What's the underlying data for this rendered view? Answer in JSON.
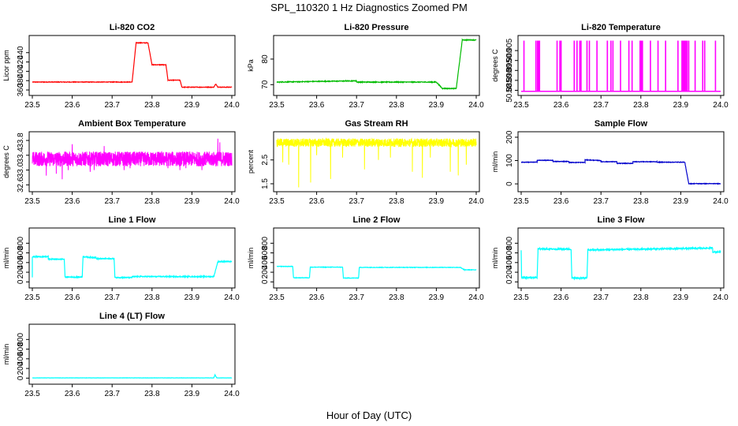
{
  "figure": {
    "title": "SPL_110320  1 Hz Diagnostics Zoomed PM",
    "xlabel": "Hour of Day (UTC)"
  },
  "chart_data": [
    {
      "type": "line",
      "title": "Li-820 CO2",
      "ylabel": "Licor ppm",
      "color": "#ff0000",
      "xlim": [
        23.5,
        24.0
      ],
      "ylim": [
        355,
        470
      ],
      "yticks": [
        360,
        380,
        400,
        420,
        440
      ],
      "ytick_labels": [
        "360",
        "380",
        "400",
        "420",
        "440"
      ],
      "xticks": [
        23.5,
        23.6,
        23.7,
        23.8,
        23.9,
        24.0
      ],
      "xtick_labels": [
        "23.5",
        "23.6",
        "23.7",
        "23.8",
        "23.9",
        "24.0"
      ],
      "noise": 0.6,
      "segments": [
        [
          23.5,
          23.75,
          377,
          377
        ],
        [
          23.75,
          23.76,
          376,
          461
        ],
        [
          23.76,
          23.79,
          461,
          461
        ],
        [
          23.79,
          23.8,
          461,
          414
        ],
        [
          23.8,
          23.835,
          414,
          414
        ],
        [
          23.835,
          23.84,
          414,
          381
        ],
        [
          23.84,
          23.87,
          381,
          381
        ],
        [
          23.87,
          23.875,
          381,
          366
        ],
        [
          23.875,
          23.955,
          366,
          366
        ],
        [
          23.955,
          23.96,
          366,
          373
        ],
        [
          23.96,
          23.965,
          373,
          366
        ],
        [
          23.965,
          24.0,
          366,
          366
        ]
      ]
    },
    {
      "type": "line",
      "title": "Li-820 Pressure",
      "ylabel": "kPa",
      "color": "#00bb00",
      "xlim": [
        23.5,
        24.0
      ],
      "ylim": [
        67,
        88
      ],
      "yticks": [
        70,
        80
      ],
      "ytick_labels": [
        "70",
        "80"
      ],
      "xticks": [
        23.5,
        23.6,
        23.7,
        23.8,
        23.9,
        24.0
      ],
      "xtick_labels": [
        "23.5",
        "23.6",
        "23.7",
        "23.8",
        "23.9",
        "24.0"
      ],
      "noise": 0.15,
      "segments": [
        [
          23.5,
          23.7,
          71.0,
          71.5
        ],
        [
          23.7,
          23.9,
          71.0,
          71.0
        ],
        [
          23.9,
          23.915,
          71.0,
          68.5
        ],
        [
          23.915,
          23.95,
          68.5,
          68.5
        ],
        [
          23.95,
          23.965,
          68.5,
          87.5
        ],
        [
          23.965,
          24.0,
          87.5,
          87.5
        ]
      ]
    },
    {
      "type": "line",
      "title": "Li-820 Temperature",
      "ylabel": "degrees C",
      "color": "#ff00ff",
      "xlim": [
        23.5,
        24.0
      ],
      "ylim": [
        50.884,
        50.911
      ],
      "yticks": [
        50.885,
        50.89,
        50.895,
        50.9,
        50.905
      ],
      "ytick_labels": [
        "50.885",
        "50.890",
        "50.895",
        "50.900",
        "50.905"
      ],
      "xticks": [
        23.5,
        23.6,
        23.7,
        23.8,
        23.9,
        24.0
      ],
      "xtick_labels": [
        "23.5",
        "23.6",
        "23.7",
        "23.8",
        "23.9",
        "24.0"
      ],
      "baseline": 50.8845,
      "spikes": [
        23.507,
        23.537,
        23.541,
        23.544,
        23.546,
        23.59,
        23.597,
        23.6,
        23.633,
        23.64,
        23.647,
        23.65,
        23.665,
        23.671,
        23.69,
        23.716,
        23.725,
        23.73,
        23.749,
        23.77,
        23.778,
        23.798,
        23.801,
        23.804,
        23.824,
        23.843,
        23.862,
        23.893,
        23.903,
        23.905,
        23.907,
        23.909,
        23.911,
        23.913,
        23.916,
        23.92,
        23.936,
        23.955,
        23.96,
        23.987
      ],
      "spike_top": 50.91
    },
    {
      "type": "line",
      "title": "Ambient Box Temperature",
      "ylabel": "degrees C",
      "color": "#ff00ff",
      "xlim": [
        23.5,
        24.0
      ],
      "ylim": [
        32.5,
        33.95
      ],
      "yticks": [
        32.6,
        33.0,
        33.4,
        33.8
      ],
      "ytick_labels": [
        "32.6",
        "33.0",
        "33.4",
        "33.8"
      ],
      "xticks": [
        23.5,
        23.6,
        23.7,
        23.8,
        23.9,
        24.0
      ],
      "xtick_labels": [
        "23.5",
        "23.6",
        "23.7",
        "23.8",
        "23.9",
        "24.0"
      ],
      "band": [
        33.1,
        33.5
      ],
      "dips": [
        [
          23.535,
          32.85
        ],
        [
          23.56,
          32.9
        ],
        [
          23.575,
          32.75
        ],
        [
          23.59,
          33.0
        ],
        [
          23.645,
          32.95
        ],
        [
          23.655,
          33.0
        ],
        [
          23.73,
          33.0
        ],
        [
          23.745,
          33.05
        ],
        [
          23.84,
          33.05
        ],
        [
          23.87,
          33.0
        ],
        [
          23.885,
          33.05
        ],
        [
          23.925,
          33.0
        ],
        [
          23.96,
          33.1
        ]
      ],
      "peaks": [
        [
          23.965,
          33.85
        ],
        [
          23.97,
          33.75
        ],
        [
          23.6,
          33.7
        ],
        [
          23.68,
          33.65
        ]
      ]
    },
    {
      "type": "line",
      "title": "Gas Stream RH",
      "ylabel": "percent",
      "color": "#ffff00",
      "xlim": [
        23.5,
        24.0
      ],
      "ylim": [
        1.3,
        3.55
      ],
      "yticks": [
        1.5,
        2.5
      ],
      "ytick_labels": [
        "1.5",
        "2.5"
      ],
      "xticks": [
        23.5,
        23.6,
        23.7,
        23.8,
        23.9,
        24.0
      ],
      "xtick_labels": [
        "23.5",
        "23.6",
        "23.7",
        "23.8",
        "23.9",
        "24.0"
      ],
      "band": [
        3.05,
        3.4
      ],
      "dips": [
        [
          23.515,
          2.4
        ],
        [
          23.53,
          2.3
        ],
        [
          23.555,
          1.35
        ],
        [
          23.585,
          1.55
        ],
        [
          23.635,
          1.7
        ],
        [
          23.665,
          2.6
        ],
        [
          23.72,
          2.1
        ],
        [
          23.755,
          2.5
        ],
        [
          23.84,
          2.0
        ],
        [
          23.865,
          1.75
        ],
        [
          23.885,
          2.6
        ],
        [
          23.935,
          2.0
        ],
        [
          23.955,
          1.85
        ],
        [
          23.975,
          2.3
        ],
        [
          23.6,
          2.7
        ],
        [
          23.785,
          2.6
        ]
      ]
    },
    {
      "type": "line",
      "title": "Sample Flow",
      "ylabel": "ml/min",
      "color": "#0000cc",
      "xlim": [
        23.5,
        24.0
      ],
      "ylim": [
        -20,
        210
      ],
      "yticks": [
        0,
        100,
        200
      ],
      "ytick_labels": [
        "0",
        "100",
        "200"
      ],
      "xticks": [
        23.5,
        23.6,
        23.7,
        23.8,
        23.9,
        24.0
      ],
      "xtick_labels": [
        "23.5",
        "23.6",
        "23.7",
        "23.8",
        "23.9",
        "24.0"
      ],
      "noise": 1.2,
      "segments": [
        [
          23.5,
          23.54,
          93,
          93
        ],
        [
          23.54,
          23.58,
          101,
          101
        ],
        [
          23.58,
          23.62,
          96,
          96
        ],
        [
          23.62,
          23.66,
          92,
          92
        ],
        [
          23.66,
          23.7,
          103,
          100
        ],
        [
          23.7,
          23.74,
          95,
          95
        ],
        [
          23.74,
          23.78,
          88,
          88
        ],
        [
          23.78,
          23.84,
          95,
          95
        ],
        [
          23.84,
          23.91,
          93,
          93
        ],
        [
          23.91,
          23.92,
          93,
          2
        ],
        [
          23.92,
          24.0,
          1,
          1
        ]
      ]
    },
    {
      "type": "line",
      "title": "Line 1 Flow",
      "ylabel": "ml/min",
      "color": "#00ffff",
      "xlim": [
        23.5,
        24.0
      ],
      "ylim": [
        -60,
        1050
      ],
      "yticks": [
        0,
        200,
        400,
        600,
        800
      ],
      "ytick_labels": [
        "0",
        "200",
        "400",
        "600",
        "800"
      ],
      "xticks": [
        23.5,
        23.6,
        23.7,
        23.8,
        23.9,
        24.0
      ],
      "xtick_labels": [
        "23.5",
        "23.6",
        "23.7",
        "23.8",
        "23.9",
        "24.0"
      ],
      "noise": 10,
      "segments": [
        [
          23.5,
          23.5,
          100,
          520
        ],
        [
          23.5,
          23.54,
          520,
          520
        ],
        [
          23.54,
          23.58,
          470,
          470
        ],
        [
          23.58,
          23.582,
          470,
          100
        ],
        [
          23.582,
          23.625,
          100,
          100
        ],
        [
          23.625,
          23.627,
          100,
          510
        ],
        [
          23.627,
          23.66,
          520,
          500
        ],
        [
          23.66,
          23.705,
          480,
          480
        ],
        [
          23.705,
          23.707,
          480,
          90
        ],
        [
          23.707,
          23.75,
          90,
          90
        ],
        [
          23.75,
          23.955,
          110,
          110
        ],
        [
          23.955,
          23.965,
          110,
          420
        ],
        [
          23.965,
          24.0,
          420,
          420
        ]
      ]
    },
    {
      "type": "line",
      "title": "Line 2 Flow",
      "ylabel": "ml/min",
      "color": "#00ffff",
      "xlim": [
        23.5,
        24.0
      ],
      "ylim": [
        -60,
        1050
      ],
      "yticks": [
        0,
        200,
        400,
        600,
        800
      ],
      "ytick_labels": [
        "0",
        "200",
        "400",
        "600",
        "800"
      ],
      "xticks": [
        23.5,
        23.6,
        23.7,
        23.8,
        23.9,
        24.0
      ],
      "xtick_labels": [
        "23.5",
        "23.6",
        "23.7",
        "23.8",
        "23.9",
        "24.0"
      ],
      "noise": 5,
      "segments": [
        [
          23.5,
          23.54,
          320,
          320
        ],
        [
          23.54,
          23.542,
          320,
          85
        ],
        [
          23.542,
          23.582,
          85,
          85
        ],
        [
          23.582,
          23.584,
          85,
          305
        ],
        [
          23.584,
          23.665,
          305,
          305
        ],
        [
          23.665,
          23.667,
          305,
          80
        ],
        [
          23.667,
          23.705,
          80,
          80
        ],
        [
          23.705,
          23.707,
          80,
          300
        ],
        [
          23.707,
          23.96,
          300,
          300
        ],
        [
          23.96,
          23.97,
          300,
          250
        ],
        [
          23.97,
          24.0,
          250,
          250
        ]
      ]
    },
    {
      "type": "line",
      "title": "Line 3 Flow",
      "ylabel": "ml/min",
      "color": "#00ffff",
      "xlim": [
        23.5,
        24.0
      ],
      "ylim": [
        -60,
        1050
      ],
      "yticks": [
        0,
        200,
        400,
        600,
        800
      ],
      "ytick_labels": [
        "0",
        "200",
        "400",
        "600",
        "800"
      ],
      "xticks": [
        23.5,
        23.6,
        23.7,
        23.8,
        23.9,
        24.0
      ],
      "xtick_labels": [
        "23.5",
        "23.6",
        "23.7",
        "23.8",
        "23.9",
        "24.0"
      ],
      "noise": 15,
      "segments": [
        [
          23.5,
          23.501,
          650,
          90
        ],
        [
          23.501,
          23.54,
          90,
          90
        ],
        [
          23.54,
          23.542,
          90,
          620
        ],
        [
          23.542,
          23.625,
          680,
          680
        ],
        [
          23.625,
          23.627,
          680,
          80
        ],
        [
          23.627,
          23.665,
          80,
          80
        ],
        [
          23.665,
          23.667,
          80,
          640
        ],
        [
          23.667,
          23.98,
          660,
          700
        ],
        [
          23.98,
          24.0,
          620,
          620
        ]
      ]
    },
    {
      "type": "line",
      "title": "Line 4 (LT) Flow",
      "ylabel": "ml/min",
      "color": "#00ffff",
      "xlim": [
        23.5,
        24.0
      ],
      "ylim": [
        -60,
        1050
      ],
      "yticks": [
        0,
        200,
        400,
        600,
        800
      ],
      "ytick_labels": [
        "0",
        "200",
        "400",
        "600",
        "800"
      ],
      "xticks": [
        23.5,
        23.6,
        23.7,
        23.8,
        23.9,
        24.0
      ],
      "xtick_labels": [
        "23.5",
        "23.6",
        "23.7",
        "23.8",
        "23.9",
        "24.0"
      ],
      "noise": 2,
      "segments": [
        [
          23.5,
          23.955,
          5,
          5
        ],
        [
          23.955,
          23.958,
          5,
          70
        ],
        [
          23.958,
          23.962,
          70,
          5
        ],
        [
          23.962,
          24.0,
          5,
          5
        ]
      ]
    }
  ]
}
